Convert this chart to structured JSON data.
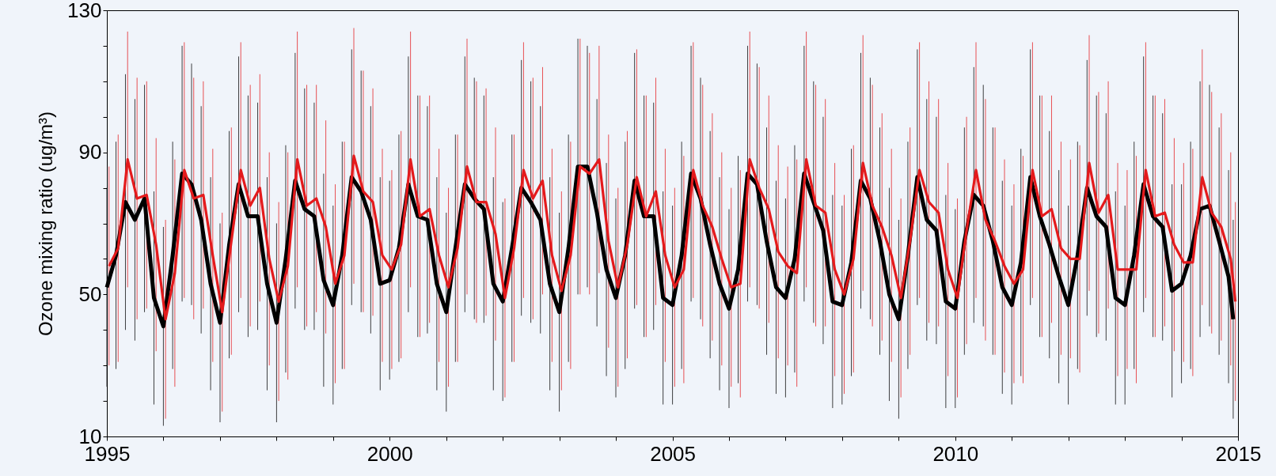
{
  "chart_data": {
    "type": "line",
    "ylabel": "Ozone mixing ratio (ug/m³)",
    "x": [
      "1995-01",
      "1995-03",
      "1995-05",
      "1995-07",
      "1995-09",
      "1995-11",
      "1996-01",
      "1996-03",
      "1996-05",
      "1996-07",
      "1996-09",
      "1996-11",
      "1997-01",
      "1997-03",
      "1997-05",
      "1997-07",
      "1997-09",
      "1997-11",
      "1998-01",
      "1998-03",
      "1998-05",
      "1998-07",
      "1998-09",
      "1998-11",
      "1999-01",
      "1999-03",
      "1999-05",
      "1999-07",
      "1999-09",
      "1999-11",
      "2000-01",
      "2000-03",
      "2000-05",
      "2000-07",
      "2000-09",
      "2000-11",
      "2001-01",
      "2001-03",
      "2001-05",
      "2001-07",
      "2001-09",
      "2001-11",
      "2002-01",
      "2002-03",
      "2002-05",
      "2002-07",
      "2002-09",
      "2002-11",
      "2003-01",
      "2003-03",
      "2003-05",
      "2003-07",
      "2003-09",
      "2003-11",
      "2004-01",
      "2004-03",
      "2004-05",
      "2004-07",
      "2004-09",
      "2004-11",
      "2005-01",
      "2005-03",
      "2005-05",
      "2005-07",
      "2005-09",
      "2005-11",
      "2006-01",
      "2006-03",
      "2006-05",
      "2006-07",
      "2006-09",
      "2006-11",
      "2007-01",
      "2007-03",
      "2007-05",
      "2007-07",
      "2007-09",
      "2007-11",
      "2008-01",
      "2008-03",
      "2008-05",
      "2008-07",
      "2008-09",
      "2008-11",
      "2009-01",
      "2009-03",
      "2009-05",
      "2009-07",
      "2009-09",
      "2009-11",
      "2010-01",
      "2010-03",
      "2010-05",
      "2010-07",
      "2010-09",
      "2010-11",
      "2011-01",
      "2011-03",
      "2011-05",
      "2011-07",
      "2011-09",
      "2011-11",
      "2012-01",
      "2012-03",
      "2012-05",
      "2012-07",
      "2012-09",
      "2012-11",
      "2013-01",
      "2013-03",
      "2013-05",
      "2013-07",
      "2013-09",
      "2013-11",
      "2014-01",
      "2014-03",
      "2014-05",
      "2014-07",
      "2014-09",
      "2014-11",
      "2014-12"
    ],
    "series": [
      {
        "color": "#000000",
        "values": [
          52,
          61,
          76,
          71,
          77,
          49,
          41,
          61,
          84,
          81,
          71,
          53,
          42,
          64,
          81,
          72,
          72,
          53,
          42,
          60,
          82,
          74,
          72,
          54,
          47,
          61,
          83,
          79,
          71,
          53,
          54,
          63,
          81,
          72,
          71,
          53,
          45,
          63,
          81,
          77,
          74,
          53,
          48,
          63,
          80,
          76,
          71,
          53,
          45,
          63,
          86,
          86,
          73,
          57,
          49,
          61,
          82,
          72,
          72,
          49,
          47,
          61,
          84,
          77,
          64,
          53,
          46,
          57,
          84,
          81,
          65,
          52,
          49,
          60,
          84,
          76,
          68,
          48,
          47,
          59,
          82,
          77,
          65,
          50,
          43,
          61,
          83,
          71,
          68,
          48,
          46,
          65,
          78,
          75,
          65,
          52,
          47,
          59,
          83,
          72,
          64,
          55,
          47,
          61,
          80,
          72,
          69,
          49,
          47,
          61,
          81,
          72,
          69,
          51,
          53,
          61,
          74,
          75,
          65,
          55,
          43
        ],
        "errors": [
          28,
          32,
          36,
          34,
          32,
          30,
          28,
          32,
          36,
          34,
          32,
          30,
          28,
          32,
          36,
          34,
          32,
          30,
          28,
          32,
          36,
          34,
          32,
          30,
          28,
          32,
          36,
          34,
          32,
          30,
          28,
          32,
          36,
          34,
          32,
          30,
          28,
          32,
          36,
          34,
          32,
          30,
          28,
          32,
          36,
          34,
          32,
          30,
          28,
          32,
          36,
          34,
          32,
          30,
          28,
          32,
          36,
          34,
          32,
          30,
          28,
          32,
          36,
          34,
          32,
          30,
          28,
          32,
          36,
          34,
          32,
          30,
          28,
          32,
          36,
          34,
          32,
          30,
          28,
          32,
          36,
          34,
          32,
          30,
          28,
          32,
          36,
          34,
          32,
          30,
          28,
          32,
          36,
          34,
          32,
          30,
          28,
          32,
          36,
          34,
          32,
          30,
          28,
          32,
          36,
          34,
          32,
          30,
          28,
          32,
          36,
          34,
          32,
          30,
          28,
          32,
          36,
          34,
          32,
          30,
          28
        ]
      },
      {
        "color": "#e41a1c",
        "x": [
          "1995-01-15",
          "1995-03-15",
          "1995-05-15",
          "1995-07-15",
          "1995-09-15",
          "1995-11-15",
          "1996-01-15",
          "1996-03-15",
          "1996-05-15",
          "1996-07-15",
          "1996-09-15",
          "1996-11-15",
          "1997-01-15",
          "1997-03-15",
          "1997-05-15",
          "1997-07-15",
          "1997-09-15",
          "1997-11-15",
          "1998-01-15",
          "1998-03-15",
          "1998-05-15",
          "1998-07-15",
          "1998-09-15",
          "1998-11-15",
          "1999-01-15",
          "1999-03-15",
          "1999-05-15",
          "1999-07-15",
          "1999-09-15",
          "1999-11-15",
          "2000-01-15",
          "2000-03-15",
          "2000-05-15",
          "2000-07-15",
          "2000-09-15",
          "2000-11-15",
          "2001-01-15",
          "2001-03-15",
          "2001-05-15",
          "2001-07-15",
          "2001-09-15",
          "2001-11-15",
          "2002-01-15",
          "2002-03-15",
          "2002-05-15",
          "2002-07-15",
          "2002-09-15",
          "2002-11-15",
          "2003-01-15",
          "2003-03-15",
          "2003-05-15",
          "2003-07-15",
          "2003-09-15",
          "2003-11-15",
          "2004-01-15",
          "2004-03-15",
          "2004-05-15",
          "2004-07-15",
          "2004-09-15",
          "2004-11-15",
          "2005-01-15",
          "2005-03-15",
          "2005-05-15",
          "2005-07-15",
          "2005-09-15",
          "2005-11-15",
          "2006-01-15",
          "2006-03-15",
          "2006-05-15",
          "2006-07-15",
          "2006-09-15",
          "2006-11-15",
          "2007-01-15",
          "2007-03-15",
          "2007-05-15",
          "2007-07-15",
          "2007-09-15",
          "2007-11-15",
          "2008-01-15",
          "2008-03-15",
          "2008-05-15",
          "2008-07-15",
          "2008-09-15",
          "2008-11-15",
          "2009-01-15",
          "2009-03-15",
          "2009-05-15",
          "2009-07-15",
          "2009-09-15",
          "2009-11-15",
          "2010-01-15",
          "2010-03-15",
          "2010-05-15",
          "2010-07-15",
          "2010-09-15",
          "2010-11-15",
          "2011-01-15",
          "2011-03-15",
          "2011-05-15",
          "2011-07-15",
          "2011-09-15",
          "2011-11-15",
          "2012-01-15",
          "2012-03-15",
          "2012-05-15",
          "2012-07-15",
          "2012-09-15",
          "2012-11-15",
          "2013-01-15",
          "2013-03-15",
          "2013-05-15",
          "2013-07-15",
          "2013-09-15",
          "2013-11-15",
          "2014-01-15",
          "2014-03-15",
          "2014-05-15",
          "2014-07-15",
          "2014-09-15",
          "2014-11-15",
          "2014-12-15"
        ],
        "values": [
          58,
          63,
          88,
          77,
          78,
          64,
          43,
          56,
          85,
          77,
          78,
          61,
          45,
          65,
          85,
          75,
          80,
          60,
          48,
          58,
          88,
          75,
          77,
          69,
          53,
          61,
          89,
          79,
          76,
          61,
          57,
          64,
          88,
          72,
          74,
          61,
          52,
          63,
          86,
          76,
          76,
          67,
          49,
          63,
          85,
          77,
          82,
          61,
          51,
          61,
          86,
          84,
          88,
          65,
          52,
          64,
          83,
          72,
          79,
          61,
          52,
          57,
          85,
          75,
          69,
          60,
          52,
          53,
          88,
          80,
          74,
          62,
          58,
          56,
          88,
          75,
          73,
          57,
          50,
          60,
          87,
          75,
          69,
          61,
          49,
          65,
          85,
          76,
          73,
          57,
          49,
          68,
          85,
          71,
          65,
          58,
          53,
          57,
          85,
          72,
          74,
          63,
          60,
          60,
          87,
          73,
          78,
          57,
          57,
          57,
          85,
          72,
          73,
          64,
          59,
          59,
          83,
          73,
          69,
          60,
          48
        ],
        "errors": [
          28,
          32,
          36,
          34,
          32,
          30,
          28,
          32,
          36,
          34,
          32,
          30,
          28,
          32,
          36,
          34,
          32,
          30,
          28,
          32,
          36,
          34,
          32,
          30,
          28,
          32,
          36,
          34,
          32,
          30,
          28,
          32,
          36,
          34,
          32,
          30,
          28,
          32,
          36,
          34,
          32,
          30,
          28,
          32,
          36,
          34,
          32,
          30,
          28,
          32,
          36,
          34,
          32,
          30,
          28,
          32,
          36,
          34,
          32,
          30,
          28,
          32,
          36,
          34,
          32,
          30,
          28,
          32,
          36,
          34,
          32,
          30,
          28,
          32,
          36,
          34,
          32,
          30,
          28,
          32,
          36,
          34,
          32,
          30,
          28,
          32,
          36,
          34,
          32,
          30,
          28,
          32,
          36,
          34,
          32,
          30,
          28,
          32,
          36,
          34,
          32,
          30,
          28,
          32,
          36,
          34,
          32,
          30,
          28,
          32,
          36,
          34,
          32,
          30,
          28,
          32,
          36,
          34,
          32,
          30,
          28
        ]
      }
    ],
    "xlim": [
      "1995-01",
      "2015-01"
    ],
    "xticks": [
      "1995",
      {
        "value": "1996",
        "label": null
      },
      {
        "value": "1997",
        "label": null
      },
      {
        "value": "1998",
        "label": null
      },
      {
        "value": "1999",
        "label": null
      },
      "2000",
      {
        "value": "2001",
        "label": null
      },
      {
        "value": "2002",
        "label": null
      },
      {
        "value": "2003",
        "label": null
      },
      {
        "value": "2004",
        "label": null
      },
      "2005",
      {
        "value": "2006",
        "label": null
      },
      {
        "value": "2007",
        "label": null
      },
      {
        "value": "2008",
        "label": null
      },
      {
        "value": "2009",
        "label": null
      },
      "2010",
      {
        "value": "2011",
        "label": null
      },
      {
        "value": "2012",
        "label": null
      },
      {
        "value": "2013",
        "label": null
      },
      {
        "value": "2014",
        "label": null
      },
      "2015"
    ],
    "ylim": [
      10,
      130
    ],
    "yticks": [
      10,
      {
        "value": 20,
        "label": null
      },
      {
        "value": 30,
        "label": null
      },
      {
        "value": 40,
        "label": null
      },
      50,
      {
        "value": 60,
        "label": null
      },
      {
        "value": 70,
        "label": null
      },
      {
        "value": 80,
        "label": null
      },
      90,
      {
        "value": 100,
        "label": null
      },
      {
        "value": 110,
        "label": null
      },
      {
        "value": 120,
        "label": null
      },
      130
    ],
    "grid": false
  }
}
